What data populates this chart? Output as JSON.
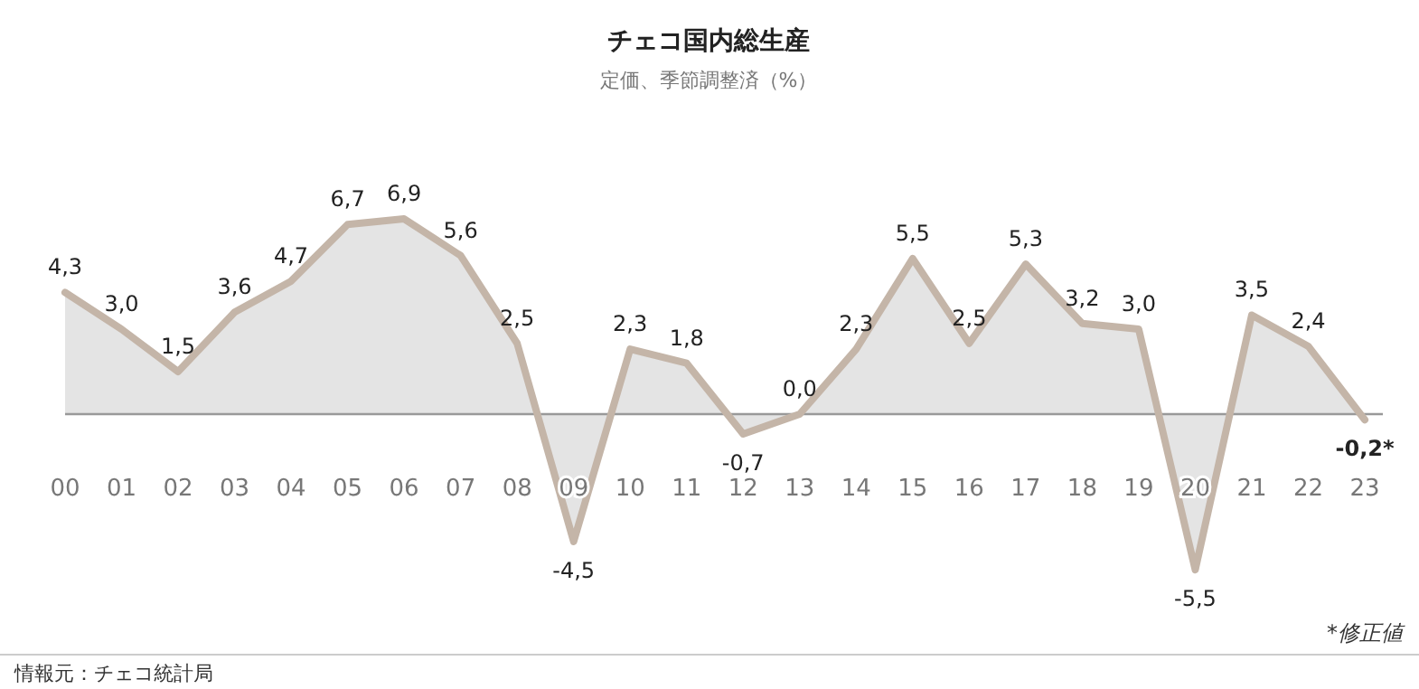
{
  "chart_data": {
    "type": "area",
    "title": "チェコ国内総生産",
    "subtitle": "定価、季節調整済（%）",
    "categories": [
      "00",
      "01",
      "02",
      "03",
      "04",
      "05",
      "06",
      "07",
      "08",
      "09",
      "10",
      "11",
      "12",
      "13",
      "14",
      "15",
      "16",
      "17",
      "18",
      "19",
      "20",
      "21",
      "22",
      "23"
    ],
    "series": [
      {
        "color": "#c4b5a8",
        "values": [
          4.3,
          3.0,
          1.5,
          3.6,
          4.7,
          6.7,
          6.9,
          5.6,
          2.5,
          -4.5,
          2.3,
          1.8,
          -0.7,
          0.0,
          2.3,
          5.5,
          2.5,
          5.3,
          3.2,
          3.0,
          -5.5,
          3.5,
          2.4,
          -0.2
        ],
        "value_labels": [
          "4,3",
          "3,0",
          "1,5",
          "3,6",
          "4,7",
          "6,7",
          "6,9",
          "5,6",
          "2,5",
          "-4,5",
          "2,3",
          "1,8",
          "-0,7",
          "0,0",
          "2,3",
          "5,5",
          "2,5",
          "5,3",
          "3,2",
          "3,0",
          "-5,5",
          "3,5",
          "2,4",
          "-0,2*"
        ]
      }
    ],
    "annotations": [
      "*修正値",
      "情報元：チェコ統計局"
    ]
  }
}
